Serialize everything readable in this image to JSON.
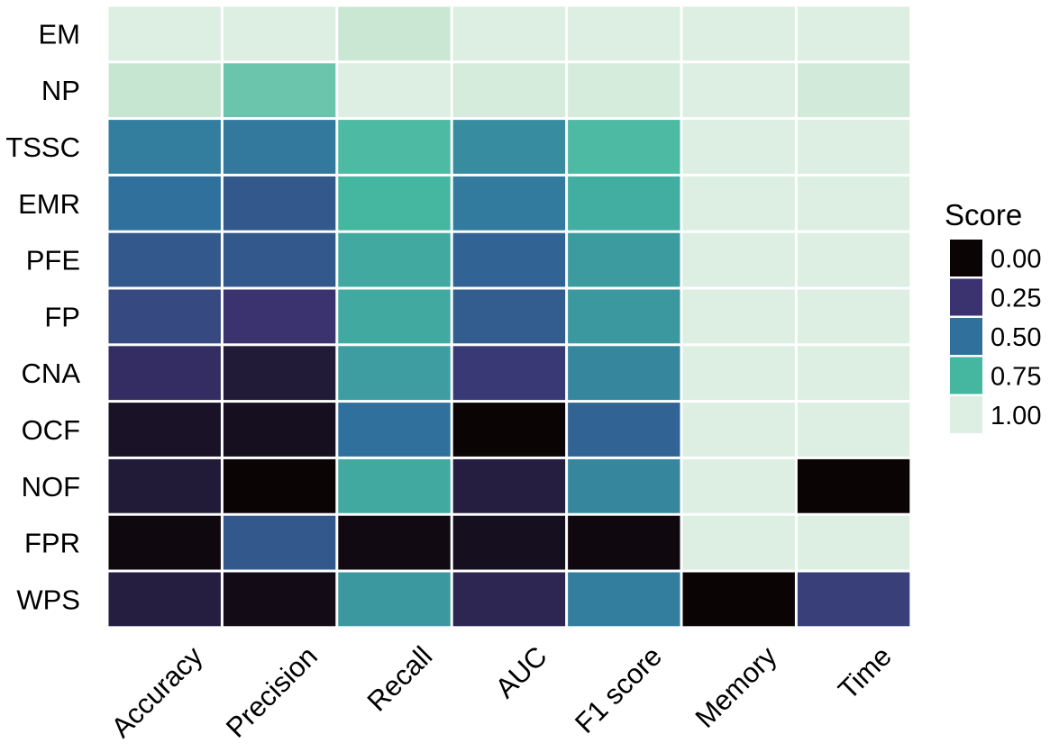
{
  "chart_data": {
    "type": "heatmap",
    "rows": [
      "EM",
      "NP",
      "TSSC",
      "EMR",
      "PFE",
      "FP",
      "CNA",
      "OCF",
      "NOF",
      "FPR",
      "WPS"
    ],
    "columns": [
      "Accuracy",
      "Precision",
      "Recall",
      "AUC",
      "F1 score",
      "Memory",
      "Time"
    ],
    "values": [
      [
        1.0,
        1.0,
        0.95,
        1.0,
        1.0,
        1.0,
        1.0
      ],
      [
        0.94,
        0.8,
        1.0,
        0.98,
        0.98,
        1.0,
        0.97
      ],
      [
        0.55,
        0.53,
        0.76,
        0.6,
        0.76,
        1.0,
        1.0
      ],
      [
        0.5,
        0.4,
        0.75,
        0.54,
        0.72,
        1.0,
        1.0
      ],
      [
        0.4,
        0.4,
        0.7,
        0.45,
        0.65,
        1.0,
        1.0
      ],
      [
        0.34,
        0.25,
        0.7,
        0.42,
        0.64,
        1.0,
        1.0
      ],
      [
        0.22,
        0.12,
        0.66,
        0.28,
        0.58,
        1.0,
        1.0
      ],
      [
        0.08,
        0.06,
        0.5,
        0.0,
        0.45,
        1.0,
        1.0
      ],
      [
        0.12,
        0.0,
        0.7,
        0.14,
        0.58,
        1.0,
        0.0
      ],
      [
        0.02,
        0.4,
        0.03,
        0.06,
        0.02,
        1.0,
        1.0
      ],
      [
        0.14,
        0.04,
        0.64,
        0.18,
        0.55,
        0.0,
        0.3
      ]
    ],
    "legend": {
      "title": "Score",
      "breaks": [
        {
          "label": "0.00",
          "color": "#0b0405"
        },
        {
          "label": "0.25",
          "color": "#3a3370"
        },
        {
          "label": "0.50",
          "color": "#2f709d"
        },
        {
          "label": "0.75",
          "color": "#45b7a1"
        },
        {
          "label": "1.00",
          "color": "#ddeee2"
        }
      ],
      "position": "right"
    },
    "color_scale": {
      "domain": [
        0,
        0.25,
        0.5,
        0.75,
        0.9,
        1.0
      ],
      "colors": [
        "#0b0405",
        "#3a3370",
        "#2f709d",
        "#45b7a1",
        "#b7e0c5",
        "#ddeee2"
      ]
    },
    "grid_line_color": "#ffffff",
    "title": "",
    "xlabel": "",
    "ylabel": ""
  }
}
